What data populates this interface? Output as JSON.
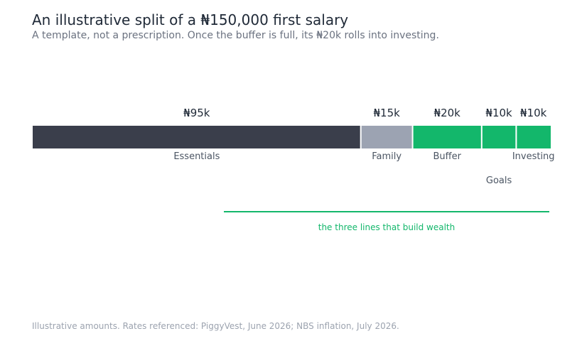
{
  "header": {
    "title": "An illustrative split of a ₦150,000 first salary",
    "subtitle": "A template, not a prescription. Once the buffer is full, its ₦20k rolls into investing."
  },
  "chart_data": {
    "type": "bar",
    "orientation": "horizontal-stacked",
    "total": 150000,
    "categories": [
      "Essentials",
      "Family",
      "Buffer",
      "Goals",
      "Investing"
    ],
    "values": [
      95000,
      15000,
      20000,
      10000,
      10000
    ],
    "value_labels": [
      "₦95k",
      "₦15k",
      "₦20k",
      "₦10k",
      "₦10k"
    ],
    "colors": [
      "#3a3e4b",
      "#9ca3b2",
      "#13b76b",
      "#13b76b",
      "#13b76b"
    ],
    "bracket": {
      "label": "the three lines that build wealth",
      "from_category": "Buffer",
      "to_category": "Investing",
      "color": "#13b76b"
    }
  },
  "footer": {
    "note": "Illustrative amounts. Rates referenced: PiggyVest, June 2026; NBS inflation, July 2026."
  }
}
